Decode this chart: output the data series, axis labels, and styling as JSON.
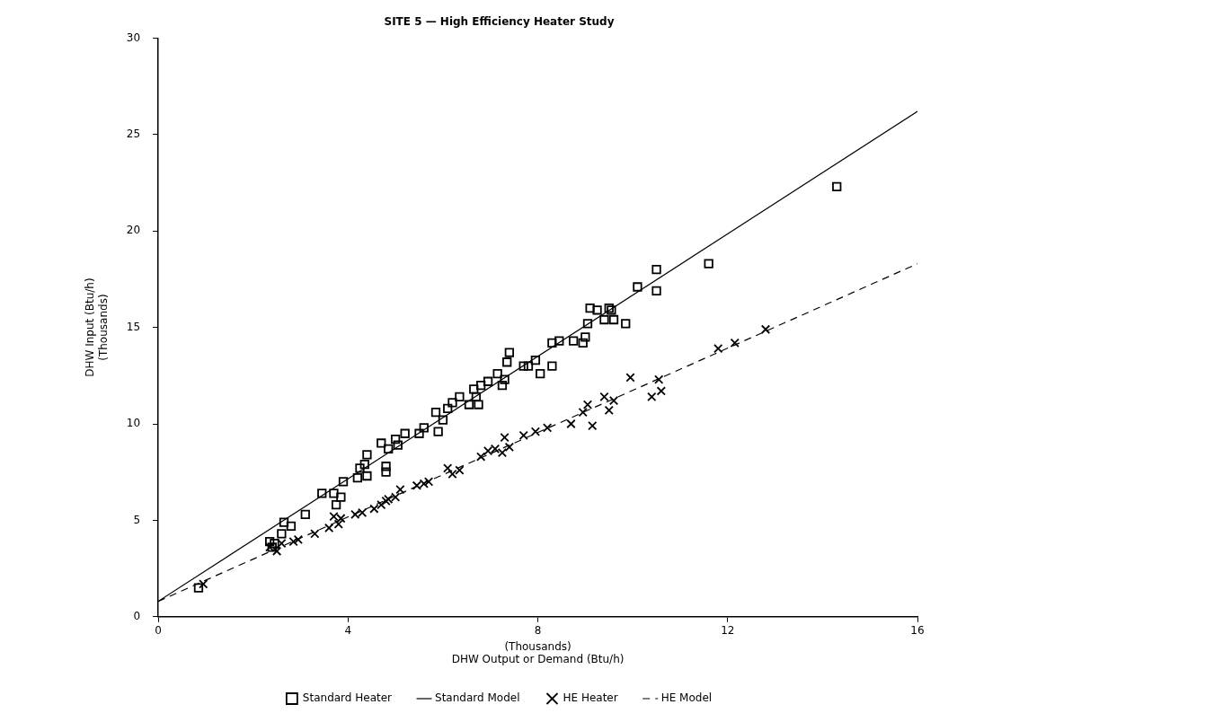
{
  "chart_data": {
    "type": "scatter",
    "title": "SITE 5 — High Efficiency Heater Study",
    "xlabel": "(Thousands)\nDHW Output or Demand (Btu/h)",
    "ylabel": "DHW Input (Btu/h)\n(Thousands)",
    "xlim": [
      0,
      16
    ],
    "xticks": [
      0,
      4,
      8,
      12,
      16
    ],
    "ylim": [
      0,
      30
    ],
    "yticks": [
      0,
      5,
      10,
      15,
      20,
      25,
      30
    ],
    "grid": false,
    "legend": "bottom",
    "series": [
      {
        "name": "Standard Heater",
        "marker": "square",
        "color": "#000000",
        "x": [
          0.85,
          2.35,
          2.4,
          2.45,
          2.6,
          2.65,
          2.8,
          3.1,
          3.45,
          3.7,
          3.75,
          3.85,
          3.9,
          4.2,
          4.25,
          4.35,
          4.4,
          4.4,
          4.7,
          4.8,
          4.8,
          4.85,
          5.0,
          5.05,
          5.2,
          5.5,
          5.6,
          5.85,
          5.9,
          6.0,
          6.1,
          6.2,
          6.35,
          6.55,
          6.65,
          6.7,
          6.75,
          6.8,
          6.95,
          7.15,
          7.25,
          7.3,
          7.35,
          7.4,
          7.7,
          7.8,
          7.95,
          8.05,
          8.3,
          8.3,
          8.45,
          8.75,
          8.95,
          9.0,
          9.05,
          9.1,
          9.25,
          9.4,
          9.5,
          9.55,
          9.6,
          9.85,
          10.1,
          10.5,
          10.5,
          11.6,
          14.3
        ],
        "values": [
          1.5,
          3.9,
          3.6,
          3.8,
          4.3,
          4.9,
          4.7,
          5.3,
          6.4,
          6.4,
          5.8,
          6.2,
          7.0,
          7.2,
          7.7,
          7.9,
          8.4,
          7.3,
          9.0,
          7.5,
          7.8,
          8.7,
          9.2,
          8.9,
          9.5,
          9.5,
          9.8,
          10.6,
          9.6,
          10.2,
          10.8,
          11.1,
          11.4,
          11.0,
          11.8,
          11.4,
          11.0,
          12.0,
          12.2,
          12.6,
          12.0,
          12.3,
          13.2,
          13.7,
          13.0,
          13.0,
          13.3,
          12.6,
          13.0,
          14.2,
          14.3,
          14.3,
          14.2,
          14.5,
          15.2,
          16.0,
          15.9,
          15.4,
          16.0,
          15.9,
          15.4,
          15.2,
          17.1,
          16.9,
          18.0,
          18.3,
          22.3
        ]
      },
      {
        "name": "Standard Model",
        "type": "line",
        "marker": "none",
        "line_style": "solid",
        "color": "#000000",
        "x": [
          0,
          16
        ],
        "values": [
          0.8,
          26.2
        ]
      },
      {
        "name": "HE Heater",
        "marker": "cross",
        "color": "#000000",
        "x": [
          0.95,
          2.35,
          2.5,
          2.6,
          2.85,
          2.95,
          3.3,
          3.6,
          3.7,
          3.8,
          3.85,
          4.15,
          4.3,
          4.55,
          4.7,
          4.8,
          4.85,
          5.0,
          5.1,
          5.45,
          5.6,
          5.7,
          6.1,
          6.2,
          6.35,
          6.8,
          6.95,
          7.1,
          7.25,
          7.3,
          7.4,
          7.7,
          7.95,
          8.2,
          8.7,
          8.95,
          9.05,
          9.15,
          9.4,
          9.5,
          9.6,
          9.95,
          10.4,
          10.55,
          10.6,
          11.8,
          12.15,
          12.8
        ],
        "values": [
          1.7,
          3.6,
          3.4,
          3.8,
          3.9,
          4.0,
          4.3,
          4.6,
          5.2,
          4.8,
          5.1,
          5.3,
          5.4,
          5.6,
          5.8,
          6.0,
          6.1,
          6.2,
          6.6,
          6.8,
          6.9,
          7.0,
          7.7,
          7.4,
          7.6,
          8.3,
          8.6,
          8.7,
          8.5,
          9.3,
          8.8,
          9.4,
          9.6,
          9.8,
          10.0,
          10.6,
          11.0,
          9.9,
          11.4,
          10.7,
          11.2,
          12.4,
          11.4,
          12.3,
          11.7,
          13.9,
          14.2,
          14.9
        ]
      },
      {
        "name": "HE Model",
        "type": "line",
        "marker": "none",
        "line_style": "dashed",
        "color": "#000000",
        "x": [
          0,
          16
        ],
        "values": [
          0.8,
          18.3
        ]
      }
    ]
  }
}
